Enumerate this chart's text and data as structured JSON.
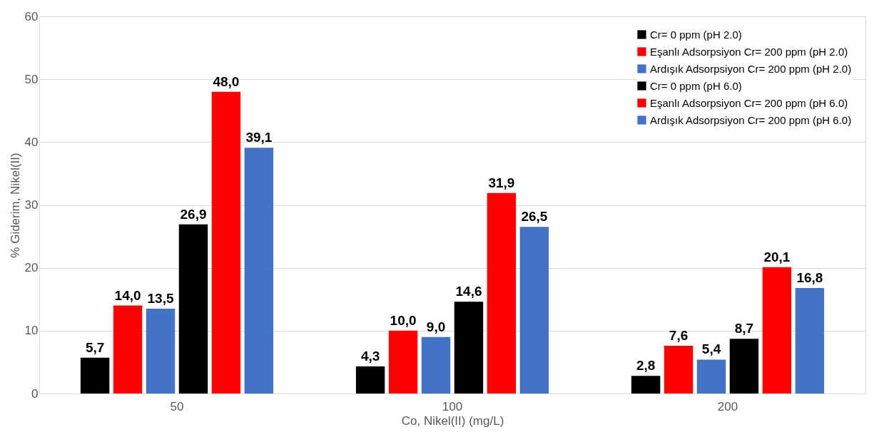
{
  "chart_data": {
    "type": "bar",
    "xlabel": "Co, Nikel(II) (mg/L)",
    "ylabel": "% Giderim, Nikel(II)",
    "categories": [
      "50",
      "100",
      "200"
    ],
    "series": [
      {
        "name": "Cr= 0 ppm (pH 2.0)",
        "color": "#000000",
        "values": [
          5.7,
          4.3,
          2.8
        ],
        "value_labels": [
          "5,7",
          "4,3",
          "2,8"
        ]
      },
      {
        "name": "Eşanlı Adsorpsiyon Cr= 200 ppm (pH 2.0)",
        "color": "#ff0000",
        "values": [
          14.0,
          10.0,
          7.6
        ],
        "value_labels": [
          "14,0",
          "10,0",
          "7,6"
        ]
      },
      {
        "name": "Ardışık Adsorpsiyon Cr= 200 ppm (pH 2.0)",
        "color": "#4472c4",
        "values": [
          13.5,
          9.0,
          5.4
        ],
        "value_labels": [
          "13,5",
          "9,0",
          "5,4"
        ]
      },
      {
        "name": "Cr= 0 ppm (pH 6.0)",
        "color": "#000000",
        "values": [
          26.9,
          14.6,
          8.7
        ],
        "value_labels": [
          "26,9",
          "14,6",
          "8,7"
        ]
      },
      {
        "name": "Eşanlı Adsorpsiyon Cr= 200 ppm (pH 6.0)",
        "color": "#ff0000",
        "values": [
          48.0,
          31.9,
          20.1
        ],
        "value_labels": [
          "48,0",
          "31,9",
          "20,1"
        ]
      },
      {
        "name": "Ardışık Adsorpsiyon Cr= 200 ppm (pH 6.0)",
        "color": "#4472c4",
        "values": [
          39.1,
          26.5,
          16.8
        ],
        "value_labels": [
          "39,1",
          "26,5",
          "16,8"
        ]
      }
    ],
    "ylim": [
      0,
      60
    ],
    "yticks": [
      0,
      10,
      20,
      30,
      40,
      50,
      60
    ],
    "grid": "y",
    "legend": "top right"
  }
}
